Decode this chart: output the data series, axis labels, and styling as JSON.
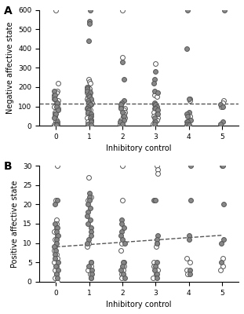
{
  "panel_A": {
    "open_circles": {
      "0": [
        600,
        220,
        180,
        170,
        160,
        150,
        140,
        130,
        120,
        110,
        100,
        90,
        80,
        70,
        60,
        50,
        40,
        30,
        20,
        10,
        5,
        5,
        0
      ],
      "1": [
        240,
        230,
        220,
        200,
        190,
        180,
        170,
        160,
        150,
        140,
        130,
        120,
        110,
        100,
        90,
        80,
        70,
        60,
        50,
        40,
        30,
        20,
        10,
        5
      ],
      "2": [
        600,
        355,
        100,
        90,
        80,
        70,
        60,
        50,
        40,
        30,
        20,
        10,
        5
      ],
      "3": [
        320,
        160,
        150,
        110,
        90,
        80,
        70,
        60,
        50,
        40,
        30,
        20,
        10
      ],
      "4": [
        140,
        130,
        50,
        30,
        20,
        10,
        5
      ],
      "5": [
        130,
        120,
        100
      ]
    },
    "filled_circles": {
      "0": [
        180,
        160,
        140,
        120,
        100,
        80,
        60,
        40,
        20,
        10,
        5
      ],
      "1": [
        600,
        540,
        530,
        440,
        200,
        190,
        180,
        170,
        160,
        150,
        140,
        130,
        120,
        110,
        100,
        90,
        80,
        70,
        60,
        50,
        40,
        30,
        20,
        10,
        5
      ],
      "2": [
        330,
        240,
        130,
        120,
        110,
        90,
        70,
        50,
        30,
        20,
        10
      ],
      "3": [
        280,
        240,
        220,
        180,
        170,
        120,
        110,
        100,
        90,
        80,
        60,
        40,
        20,
        10
      ],
      "4": [
        600,
        400,
        140,
        70,
        60,
        50,
        30,
        20,
        10,
        5
      ],
      "5": [
        600,
        110,
        100,
        20,
        10
      ]
    },
    "dashed_line_y": 115,
    "ylim": [
      0,
      600
    ],
    "yticks": [
      0,
      100,
      200,
      300,
      400,
      500,
      600
    ],
    "ylabel": "Negative affective state",
    "xlabel": "Inhibitory control",
    "panel_label": "A"
  },
  "panel_B": {
    "open_circles": {
      "0": [
        30,
        21,
        16,
        15,
        14,
        13,
        12,
        11,
        9,
        8,
        7,
        6,
        5,
        4,
        3,
        2,
        1,
        0
      ],
      "1": [
        27,
        22,
        21,
        10,
        9,
        5,
        4,
        3,
        2,
        1
      ],
      "2": [
        30,
        21,
        10,
        8,
        5,
        4,
        3,
        2,
        1
      ],
      "3": [
        30,
        29,
        28,
        10,
        9,
        5,
        4,
        3,
        2,
        1
      ],
      "4": [
        6,
        5,
        3,
        2
      ],
      "5": [
        30,
        6,
        4,
        3
      ]
    },
    "filled_circles": {
      "0": [
        21,
        20,
        15,
        14,
        13,
        12,
        11,
        10,
        9,
        8,
        7,
        6,
        5,
        4,
        3,
        2,
        1
      ],
      "1": [
        23,
        22,
        21,
        20,
        19,
        18,
        17,
        16,
        15,
        14,
        13,
        12,
        11,
        10,
        5,
        4,
        3,
        2,
        1
      ],
      "2": [
        16,
        15,
        14,
        13,
        12,
        11,
        10,
        5,
        4,
        3,
        2,
        1
      ],
      "3": [
        21,
        21,
        12,
        11,
        10,
        5,
        4,
        3,
        2,
        1
      ],
      "4": [
        30,
        21,
        12,
        11,
        3,
        2
      ],
      "5": [
        30,
        20,
        11,
        10,
        5
      ]
    },
    "dashed_line": {
      "x0": 0,
      "y0": 9,
      "x1": 5,
      "y1": 12
    },
    "ylim": [
      0,
      30
    ],
    "yticks": [
      0,
      5,
      10,
      15,
      20,
      25,
      30
    ],
    "ylabel": "Positive affective state",
    "xlabel": "Inhibitory control",
    "panel_label": "B"
  },
  "open_circle_style": {
    "facecolor": "white",
    "edgecolor": "#555555",
    "size": 18,
    "linewidth": 0.7
  },
  "filled_circle_style": {
    "facecolor": "#888888",
    "edgecolor": "#555555",
    "size": 18,
    "linewidth": 0.7
  },
  "xticks": [
    0,
    1,
    2,
    3,
    4,
    5
  ],
  "figure_bg": "white",
  "jitter_seed": 42,
  "jitter_amount": 0.07
}
